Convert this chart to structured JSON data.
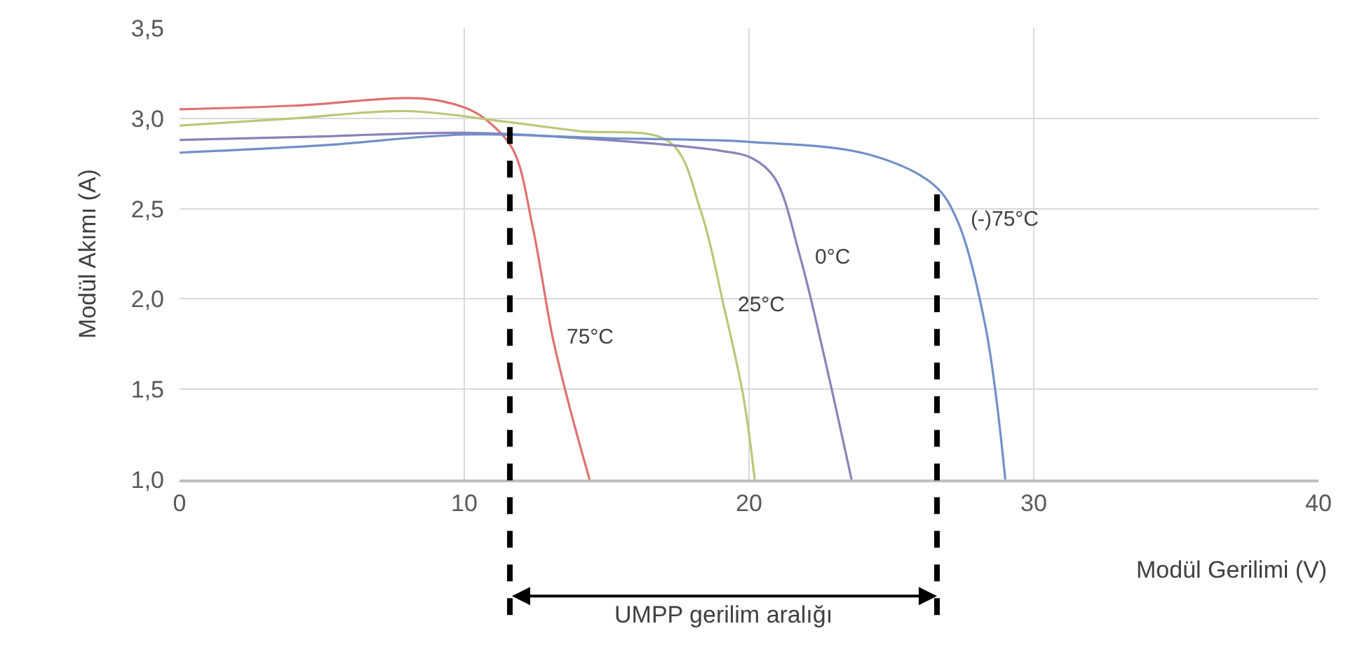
{
  "chart_data": {
    "type": "line",
    "xlabel": "Modül Gerilimi (V)",
    "ylabel": "Modül Akımı (A)",
    "series": [
      {
        "name": "75°C",
        "color": "#e07070",
        "x": [
          0,
          4,
          8.5,
          10,
          10.7,
          11.7,
          12.4,
          13.1,
          13.7,
          14.4
        ],
        "values": [
          3.05,
          3.07,
          3.11,
          3.06,
          3.0,
          2.83,
          2.4,
          1.79,
          1.4,
          1.0
        ]
      },
      {
        "name": "25°C",
        "color": "#b8c878",
        "x": [
          0,
          4,
          8,
          11.5,
          14,
          17.2,
          18.3,
          19.1,
          19.8,
          20.2
        ],
        "values": [
          2.96,
          3.0,
          3.04,
          2.98,
          2.93,
          2.87,
          2.49,
          1.97,
          1.46,
          1.0
        ]
      },
      {
        "name": "0°C",
        "color": "#8e80b8",
        "x": [
          0,
          5,
          10,
          15,
          19,
          20.1,
          20.9,
          21.8,
          22.6,
          23.6
        ],
        "values": [
          2.88,
          2.9,
          2.92,
          2.88,
          2.82,
          2.78,
          2.67,
          2.23,
          1.71,
          1.0
        ]
      },
      {
        "name": "(-)75°C",
        "color": "#7090c8",
        "x": [
          0,
          5,
          10,
          15,
          20,
          24.2,
          26.5,
          27.3,
          28.3,
          29.0
        ],
        "values": [
          2.81,
          2.85,
          2.91,
          2.89,
          2.87,
          2.8,
          2.63,
          2.44,
          1.85,
          1.0
        ]
      }
    ],
    "xlim": [
      0,
      40
    ],
    "xticks": [
      0,
      10,
      20,
      30,
      40
    ],
    "ylim": [
      1.0,
      3.5
    ],
    "yticks": [
      {
        "value": 1.0,
        "label": "1,0"
      },
      {
        "value": 1.5,
        "label": "1,5"
      },
      {
        "value": 2.0,
        "label": "2,0"
      },
      {
        "value": 2.5,
        "label": "2,5"
      },
      {
        "value": 3.0,
        "label": "3,0"
      },
      {
        "value": 3.5,
        "label": "3,5"
      }
    ],
    "grid": true,
    "legend": false,
    "marker": "none",
    "line_style": "solid",
    "ref_lines": [
      {
        "axis": "x",
        "value": 11.6,
        "line_style": "dashed",
        "color": "#000000"
      },
      {
        "axis": "x",
        "value": 26.6,
        "line_style": "dashed",
        "color": "#000000"
      }
    ],
    "annotations": [
      "UMPP gerilim aralığı"
    ]
  }
}
